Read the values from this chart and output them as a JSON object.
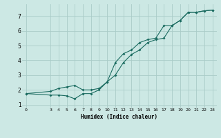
{
  "title": "",
  "xlabel": "Humidex (Indice chaleur)",
  "ylabel": "",
  "bg_color": "#cce8e4",
  "grid_color": "#aaccc8",
  "line_color": "#1a6b60",
  "xlim": [
    -0.5,
    23.5
  ],
  "ylim": [
    0.8,
    7.8
  ],
  "xticks": [
    0,
    3,
    4,
    5,
    6,
    7,
    8,
    9,
    10,
    11,
    12,
    13,
    14,
    15,
    16,
    17,
    18,
    19,
    20,
    21,
    22,
    23
  ],
  "yticks": [
    1,
    2,
    3,
    4,
    5,
    6,
    7
  ],
  "line1_x": [
    0,
    3,
    4,
    5,
    6,
    7,
    8,
    9,
    10,
    11,
    12,
    13,
    14,
    15,
    16,
    17,
    18,
    19,
    20,
    21,
    22,
    23
  ],
  "line1_y": [
    1.75,
    1.65,
    1.65,
    1.6,
    1.4,
    1.75,
    1.75,
    2.0,
    2.55,
    3.0,
    3.85,
    4.4,
    4.7,
    5.2,
    5.4,
    5.5,
    6.35,
    6.7,
    7.25,
    7.25,
    7.35,
    7.4
  ],
  "line2_x": [
    0,
    3,
    4,
    5,
    6,
    7,
    8,
    9,
    10,
    11,
    12,
    13,
    14,
    15,
    16,
    17,
    18,
    19,
    20,
    21,
    22,
    23
  ],
  "line2_y": [
    1.75,
    1.9,
    2.1,
    2.2,
    2.3,
    2.0,
    2.0,
    2.1,
    2.55,
    3.85,
    4.45,
    4.7,
    5.2,
    5.4,
    5.5,
    6.35,
    6.35,
    6.7,
    7.25,
    7.25,
    7.35,
    7.4
  ]
}
